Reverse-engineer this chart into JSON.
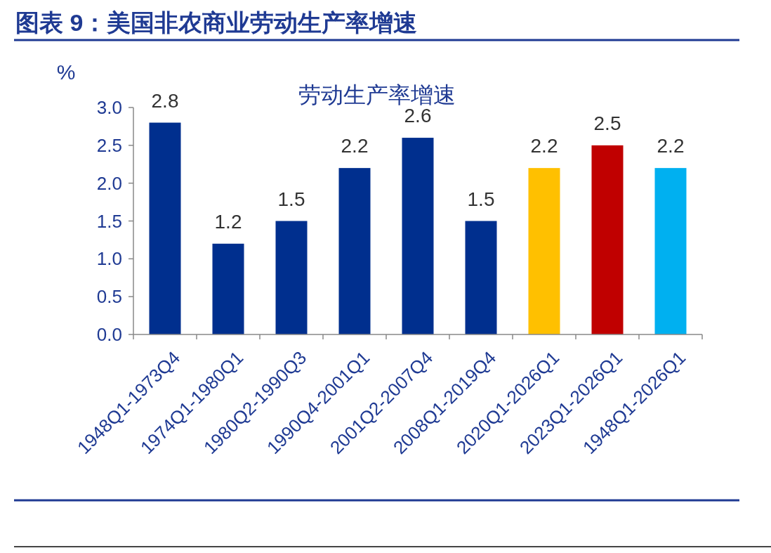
{
  "chart_data": {
    "type": "bar",
    "title": "图表 9：美国非农商业劳动生产率增速",
    "subtitle": "劳动生产率增速",
    "ylabel": "%",
    "categories": [
      "1948Q1-1973Q4",
      "1974Q1-1980Q1",
      "1980Q2-1990Q3",
      "1990Q4-2001Q1",
      "2001Q2-2007Q4",
      "2008Q1-2019Q4",
      "2020Q1-2026Q1",
      "2023Q1-2026Q1",
      "1948Q1-2026Q1"
    ],
    "values": [
      2.8,
      1.2,
      1.5,
      2.2,
      2.6,
      1.5,
      2.2,
      2.5,
      2.2
    ],
    "colors": [
      "#002f8e",
      "#002f8e",
      "#002f8e",
      "#002f8e",
      "#002f8e",
      "#002f8e",
      "#ffc000",
      "#c00000",
      "#00b0f0"
    ],
    "ylim": [
      0,
      3
    ],
    "yticks": [
      {
        "value": 0,
        "label": "0.0"
      },
      {
        "value": 0.5,
        "label": "0.5"
      },
      {
        "value": 1,
        "label": "1.0"
      },
      {
        "value": 1.5,
        "label": "1.5"
      },
      {
        "value": 2,
        "label": "2.0"
      },
      {
        "value": 2.5,
        "label": "2.5"
      },
      {
        "value": 3,
        "label": "3.0"
      }
    ],
    "data_labels": true,
    "grid": false
  }
}
